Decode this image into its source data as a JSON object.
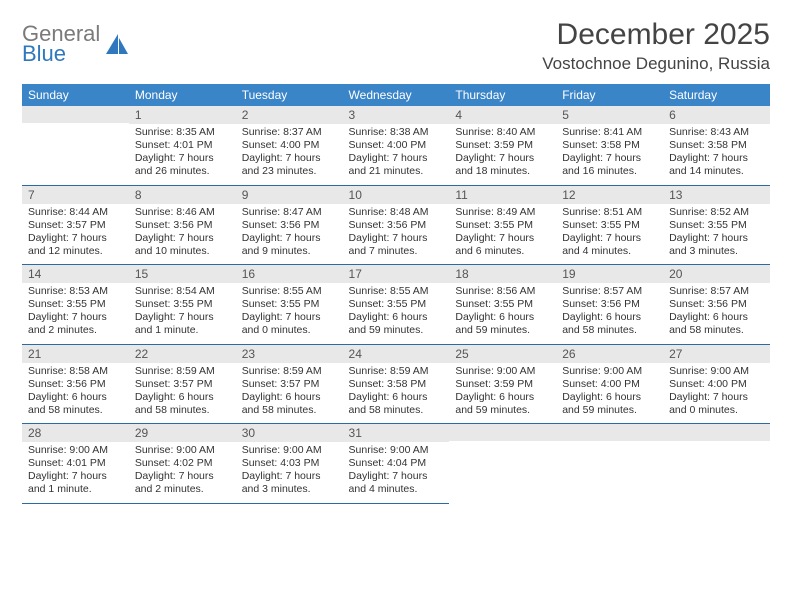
{
  "brand": {
    "line1": "General",
    "line2": "Blue"
  },
  "title": "December 2025",
  "location": "Vostochnoe Degunino, Russia",
  "colors": {
    "header_bg": "#3a84c8",
    "header_text": "#ffffff",
    "daynum_bg": "#e8e8e8",
    "rule": "#2c6aa3",
    "brand_gray": "#7a7a7a",
    "brand_blue": "#2f78bd"
  },
  "dayNames": [
    "Sunday",
    "Monday",
    "Tuesday",
    "Wednesday",
    "Thursday",
    "Friday",
    "Saturday"
  ],
  "weeks": [
    [
      null,
      {
        "n": "1",
        "sr": "Sunrise: 8:35 AM",
        "ss": "Sunset: 4:01 PM",
        "d1": "Daylight: 7 hours",
        "d2": "and 26 minutes."
      },
      {
        "n": "2",
        "sr": "Sunrise: 8:37 AM",
        "ss": "Sunset: 4:00 PM",
        "d1": "Daylight: 7 hours",
        "d2": "and 23 minutes."
      },
      {
        "n": "3",
        "sr": "Sunrise: 8:38 AM",
        "ss": "Sunset: 4:00 PM",
        "d1": "Daylight: 7 hours",
        "d2": "and 21 minutes."
      },
      {
        "n": "4",
        "sr": "Sunrise: 8:40 AM",
        "ss": "Sunset: 3:59 PM",
        "d1": "Daylight: 7 hours",
        "d2": "and 18 minutes."
      },
      {
        "n": "5",
        "sr": "Sunrise: 8:41 AM",
        "ss": "Sunset: 3:58 PM",
        "d1": "Daylight: 7 hours",
        "d2": "and 16 minutes."
      },
      {
        "n": "6",
        "sr": "Sunrise: 8:43 AM",
        "ss": "Sunset: 3:58 PM",
        "d1": "Daylight: 7 hours",
        "d2": "and 14 minutes."
      }
    ],
    [
      {
        "n": "7",
        "sr": "Sunrise: 8:44 AM",
        "ss": "Sunset: 3:57 PM",
        "d1": "Daylight: 7 hours",
        "d2": "and 12 minutes."
      },
      {
        "n": "8",
        "sr": "Sunrise: 8:46 AM",
        "ss": "Sunset: 3:56 PM",
        "d1": "Daylight: 7 hours",
        "d2": "and 10 minutes."
      },
      {
        "n": "9",
        "sr": "Sunrise: 8:47 AM",
        "ss": "Sunset: 3:56 PM",
        "d1": "Daylight: 7 hours",
        "d2": "and 9 minutes."
      },
      {
        "n": "10",
        "sr": "Sunrise: 8:48 AM",
        "ss": "Sunset: 3:56 PM",
        "d1": "Daylight: 7 hours",
        "d2": "and 7 minutes."
      },
      {
        "n": "11",
        "sr": "Sunrise: 8:49 AM",
        "ss": "Sunset: 3:55 PM",
        "d1": "Daylight: 7 hours",
        "d2": "and 6 minutes."
      },
      {
        "n": "12",
        "sr": "Sunrise: 8:51 AM",
        "ss": "Sunset: 3:55 PM",
        "d1": "Daylight: 7 hours",
        "d2": "and 4 minutes."
      },
      {
        "n": "13",
        "sr": "Sunrise: 8:52 AM",
        "ss": "Sunset: 3:55 PM",
        "d1": "Daylight: 7 hours",
        "d2": "and 3 minutes."
      }
    ],
    [
      {
        "n": "14",
        "sr": "Sunrise: 8:53 AM",
        "ss": "Sunset: 3:55 PM",
        "d1": "Daylight: 7 hours",
        "d2": "and 2 minutes."
      },
      {
        "n": "15",
        "sr": "Sunrise: 8:54 AM",
        "ss": "Sunset: 3:55 PM",
        "d1": "Daylight: 7 hours",
        "d2": "and 1 minute."
      },
      {
        "n": "16",
        "sr": "Sunrise: 8:55 AM",
        "ss": "Sunset: 3:55 PM",
        "d1": "Daylight: 7 hours",
        "d2": "and 0 minutes."
      },
      {
        "n": "17",
        "sr": "Sunrise: 8:55 AM",
        "ss": "Sunset: 3:55 PM",
        "d1": "Daylight: 6 hours",
        "d2": "and 59 minutes."
      },
      {
        "n": "18",
        "sr": "Sunrise: 8:56 AM",
        "ss": "Sunset: 3:55 PM",
        "d1": "Daylight: 6 hours",
        "d2": "and 59 minutes."
      },
      {
        "n": "19",
        "sr": "Sunrise: 8:57 AM",
        "ss": "Sunset: 3:56 PM",
        "d1": "Daylight: 6 hours",
        "d2": "and 58 minutes."
      },
      {
        "n": "20",
        "sr": "Sunrise: 8:57 AM",
        "ss": "Sunset: 3:56 PM",
        "d1": "Daylight: 6 hours",
        "d2": "and 58 minutes."
      }
    ],
    [
      {
        "n": "21",
        "sr": "Sunrise: 8:58 AM",
        "ss": "Sunset: 3:56 PM",
        "d1": "Daylight: 6 hours",
        "d2": "and 58 minutes."
      },
      {
        "n": "22",
        "sr": "Sunrise: 8:59 AM",
        "ss": "Sunset: 3:57 PM",
        "d1": "Daylight: 6 hours",
        "d2": "and 58 minutes."
      },
      {
        "n": "23",
        "sr": "Sunrise: 8:59 AM",
        "ss": "Sunset: 3:57 PM",
        "d1": "Daylight: 6 hours",
        "d2": "and 58 minutes."
      },
      {
        "n": "24",
        "sr": "Sunrise: 8:59 AM",
        "ss": "Sunset: 3:58 PM",
        "d1": "Daylight: 6 hours",
        "d2": "and 58 minutes."
      },
      {
        "n": "25",
        "sr": "Sunrise: 9:00 AM",
        "ss": "Sunset: 3:59 PM",
        "d1": "Daylight: 6 hours",
        "d2": "and 59 minutes."
      },
      {
        "n": "26",
        "sr": "Sunrise: 9:00 AM",
        "ss": "Sunset: 4:00 PM",
        "d1": "Daylight: 6 hours",
        "d2": "and 59 minutes."
      },
      {
        "n": "27",
        "sr": "Sunrise: 9:00 AM",
        "ss": "Sunset: 4:00 PM",
        "d1": "Daylight: 7 hours",
        "d2": "and 0 minutes."
      }
    ],
    [
      {
        "n": "28",
        "sr": "Sunrise: 9:00 AM",
        "ss": "Sunset: 4:01 PM",
        "d1": "Daylight: 7 hours",
        "d2": "and 1 minute."
      },
      {
        "n": "29",
        "sr": "Sunrise: 9:00 AM",
        "ss": "Sunset: 4:02 PM",
        "d1": "Daylight: 7 hours",
        "d2": "and 2 minutes."
      },
      {
        "n": "30",
        "sr": "Sunrise: 9:00 AM",
        "ss": "Sunset: 4:03 PM",
        "d1": "Daylight: 7 hours",
        "d2": "and 3 minutes."
      },
      {
        "n": "31",
        "sr": "Sunrise: 9:00 AM",
        "ss": "Sunset: 4:04 PM",
        "d1": "Daylight: 7 hours",
        "d2": "and 4 minutes."
      },
      null,
      null,
      null
    ]
  ]
}
